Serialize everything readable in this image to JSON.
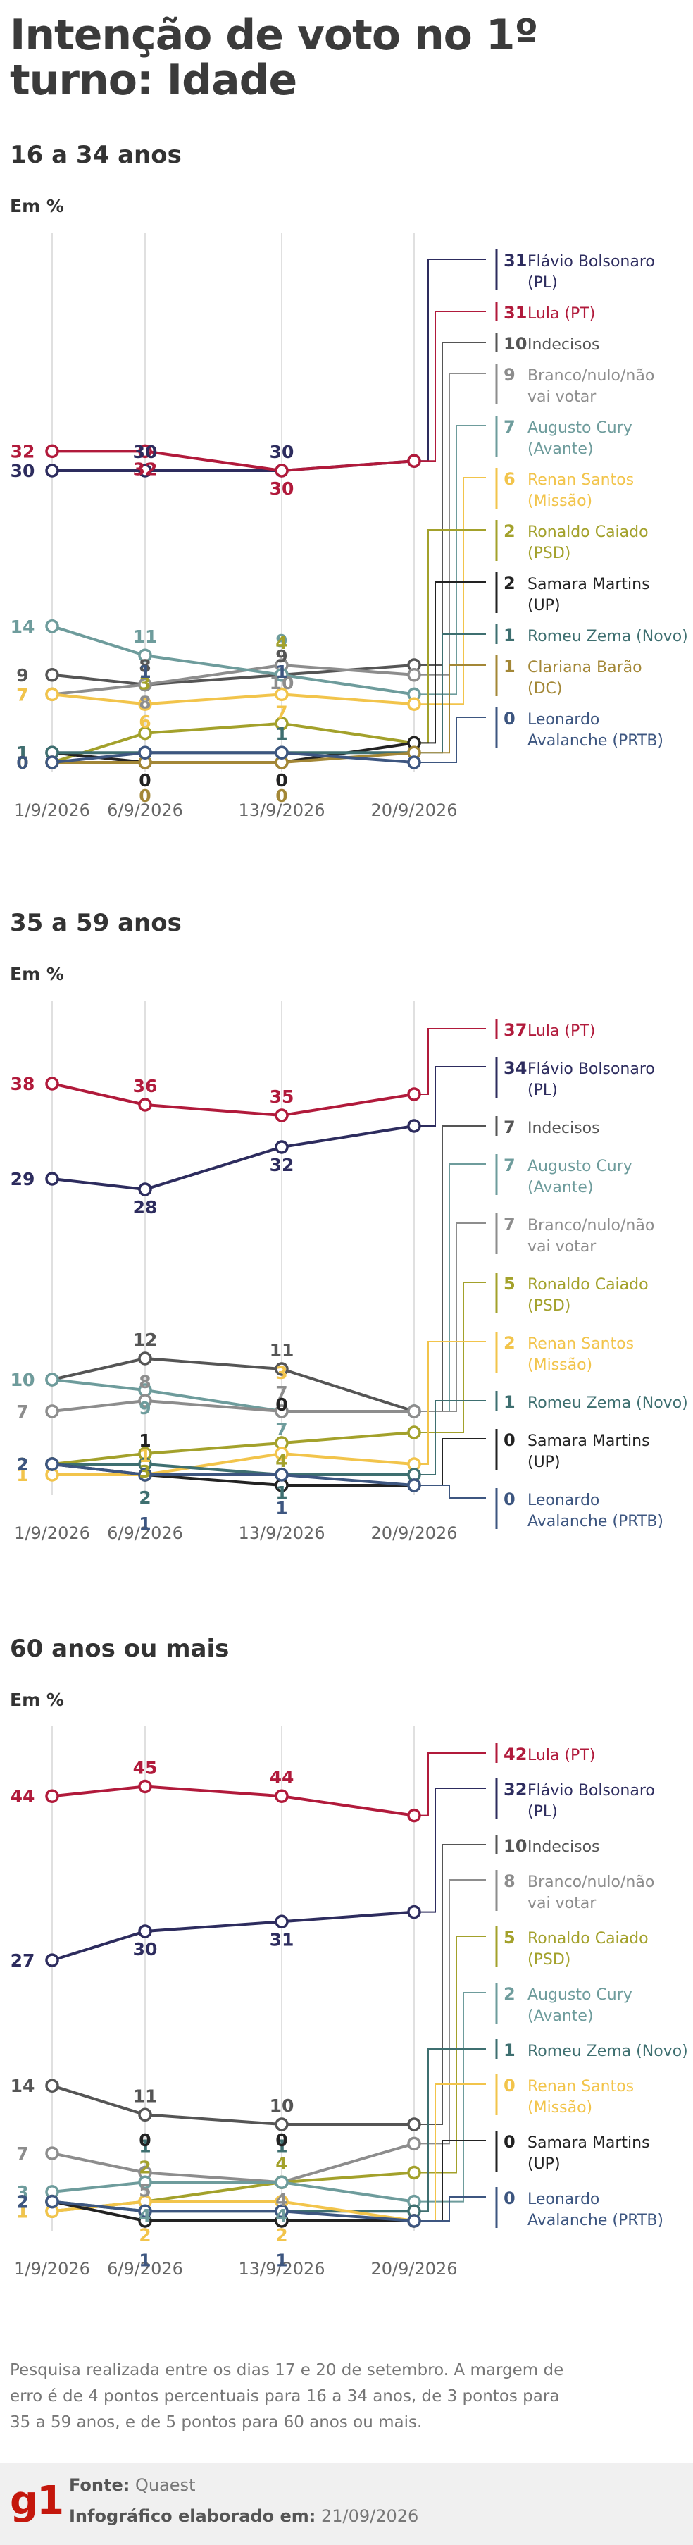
{
  "title": "Intenção de voto no 1º turno: Idade",
  "unit": "Em %",
  "colors": {
    "lula": "#b11a3b",
    "flavio": "#2d2c5e",
    "indecisos": "#555555",
    "branco": "#8d8d8d",
    "cury": "#6e9c9c",
    "renan": "#f2c44b",
    "caiado": "#a3a12b",
    "samara": "#222222",
    "zema": "#3e6f70",
    "clariana": "#a38736",
    "avalanche": "#3d5680"
  },
  "chart_data": [
    {
      "type": "line",
      "title": "16 a 34 anos",
      "x": [
        "1/9/2026",
        "6/9/2026",
        "13/9/2026",
        "20/9/2026"
      ],
      "series": [
        {
          "name": "Flávio Bolsonaro (PL)",
          "key": "flavio",
          "values": [
            30,
            30,
            30,
            31
          ]
        },
        {
          "name": "Lula (PT)",
          "key": "lula",
          "values": [
            32,
            32,
            30,
            31
          ]
        },
        {
          "name": "Indecisos",
          "key": "indecisos",
          "values": [
            9,
            8,
            9,
            10
          ]
        },
        {
          "name": "Branco/nulo/não vai votar",
          "key": "branco",
          "values": [
            7,
            8,
            10,
            9
          ]
        },
        {
          "name": "Augusto Cury (Avante)",
          "key": "cury",
          "values": [
            14,
            11,
            9,
            7
          ]
        },
        {
          "name": "Renan Santos (Missão)",
          "key": "renan",
          "values": [
            7,
            6,
            7,
            6
          ]
        },
        {
          "name": "Ronaldo Caiado (PSD)",
          "key": "caiado",
          "values": [
            0,
            3,
            4,
            2
          ]
        },
        {
          "name": "Samara Martins (UP)",
          "key": "samara",
          "values": [
            1,
            0,
            0,
            2
          ]
        },
        {
          "name": "Romeu Zema (Novo)",
          "key": "zema",
          "values": [
            1,
            1,
            1,
            1
          ]
        },
        {
          "name": "Clariana Barão (DC)",
          "key": "clariana",
          "values": [
            0,
            0,
            0,
            1
          ]
        },
        {
          "name": "Leonardo Avalanche (PRTB)",
          "key": "avalanche",
          "values": [
            0,
            1,
            1,
            0
          ]
        }
      ],
      "legend": [
        {
          "value": "31",
          "name": "Flávio Bolsonaro (PL)",
          "key": "flavio"
        },
        {
          "value": "31",
          "name": "Lula (PT)",
          "key": "lula"
        },
        {
          "value": "10",
          "name": "Indecisos",
          "key": "indecisos"
        },
        {
          "value": "9",
          "name": "Branco/nulo/não vai votar",
          "key": "branco"
        },
        {
          "value": "7",
          "name": "Augusto Cury (Avante)",
          "key": "cury"
        },
        {
          "value": "6",
          "name": "Renan Santos (Missão)",
          "key": "renan"
        },
        {
          "value": "2",
          "name": "Ronaldo Caiado (PSD)",
          "key": "caiado"
        },
        {
          "value": "2",
          "name": "Samara Martins (UP)",
          "key": "samara"
        },
        {
          "value": "1",
          "name": "Romeu Zema (Novo)",
          "key": "zema"
        },
        {
          "value": "1",
          "name": "Clariana Barão (DC)",
          "key": "clariana"
        },
        {
          "value": "0",
          "name": "Leonardo Avalanche (PRTB)",
          "key": "avalanche"
        }
      ]
    },
    {
      "type": "line",
      "title": "35 a 59 anos",
      "x": [
        "1/9/2026",
        "6/9/2026",
        "13/9/2026",
        "20/9/2026"
      ],
      "series": [
        {
          "name": "Lula (PT)",
          "key": "lula",
          "values": [
            38,
            36,
            35,
            37
          ]
        },
        {
          "name": "Flávio Bolsonaro (PL)",
          "key": "flavio",
          "values": [
            29,
            28,
            32,
            34
          ]
        },
        {
          "name": "Indecisos",
          "key": "indecisos",
          "values": [
            10,
            12,
            11,
            7
          ]
        },
        {
          "name": "Augusto Cury (Avante)",
          "key": "cury",
          "values": [
            10,
            9,
            7,
            7
          ]
        },
        {
          "name": "Branco/nulo/não vai votar",
          "key": "branco",
          "values": [
            7,
            8,
            7,
            7
          ]
        },
        {
          "name": "Ronaldo Caiado (PSD)",
          "key": "caiado",
          "values": [
            2,
            3,
            4,
            5
          ]
        },
        {
          "name": "Renan Santos (Missão)",
          "key": "renan",
          "values": [
            1,
            1,
            3,
            2
          ]
        },
        {
          "name": "Romeu Zema (Novo)",
          "key": "zema",
          "values": [
            2,
            2,
            1,
            1
          ]
        },
        {
          "name": "Samara Martins (UP)",
          "key": "samara",
          "values": [
            2,
            1,
            0,
            0
          ]
        },
        {
          "name": "Leonardo Avalanche (PRTB)",
          "key": "avalanche",
          "values": [
            2,
            1,
            1,
            0
          ]
        }
      ],
      "legend": [
        {
          "value": "37",
          "name": "Lula (PT)",
          "key": "lula"
        },
        {
          "value": "34",
          "name": "Flávio Bolsonaro (PL)",
          "key": "flavio"
        },
        {
          "value": "7",
          "name": "Indecisos",
          "key": "indecisos"
        },
        {
          "value": "7",
          "name": "Augusto Cury (Avante)",
          "key": "cury"
        },
        {
          "value": "7",
          "name": "Branco/nulo/não vai votar",
          "key": "branco"
        },
        {
          "value": "5",
          "name": "Ronaldo Caiado (PSD)",
          "key": "caiado"
        },
        {
          "value": "2",
          "name": "Renan Santos (Missão)",
          "key": "renan"
        },
        {
          "value": "1",
          "name": "Romeu Zema (Novo)",
          "key": "zema"
        },
        {
          "value": "0",
          "name": "Samara Martins (UP)",
          "key": "samara"
        },
        {
          "value": "0",
          "name": "Leonardo Avalanche (PRTB)",
          "key": "avalanche"
        }
      ]
    },
    {
      "type": "line",
      "title": "60 anos ou mais",
      "x": [
        "1/9/2026",
        "6/9/2026",
        "13/9/2026",
        "20/9/2026"
      ],
      "series": [
        {
          "name": "Lula (PT)",
          "key": "lula",
          "values": [
            44,
            45,
            44,
            42
          ]
        },
        {
          "name": "Flávio Bolsonaro (PL)",
          "key": "flavio",
          "values": [
            27,
            30,
            31,
            32
          ]
        },
        {
          "name": "Indecisos",
          "key": "indecisos",
          "values": [
            14,
            11,
            10,
            10
          ]
        },
        {
          "name": "Branco/nulo/não vai votar",
          "key": "branco",
          "values": [
            7,
            5,
            4,
            8
          ]
        },
        {
          "name": "Ronaldo Caiado (PSD)",
          "key": "caiado",
          "values": [
            1,
            2,
            4,
            5
          ]
        },
        {
          "name": "Augusto Cury (Avante)",
          "key": "cury",
          "values": [
            3,
            4,
            4,
            2
          ]
        },
        {
          "name": "Romeu Zema (Novo)",
          "key": "zema",
          "values": [
            2,
            1,
            1,
            1
          ]
        },
        {
          "name": "Renan Santos (Missão)",
          "key": "renan",
          "values": [
            1,
            2,
            2,
            0
          ]
        },
        {
          "name": "Samara Martins (UP)",
          "key": "samara",
          "values": [
            2,
            0,
            0,
            0
          ]
        },
        {
          "name": "Leonardo Avalanche (PRTB)",
          "key": "avalanche",
          "values": [
            2,
            1,
            1,
            0
          ]
        }
      ],
      "legend": [
        {
          "value": "42",
          "name": "Lula (PT)",
          "key": "lula"
        },
        {
          "value": "32",
          "name": "Flávio Bolsonaro (PL)",
          "key": "flavio"
        },
        {
          "value": "10",
          "name": "Indecisos",
          "key": "indecisos"
        },
        {
          "value": "8",
          "name": "Branco/nulo/não vai votar",
          "key": "branco"
        },
        {
          "value": "5",
          "name": "Ronaldo Caiado (PSD)",
          "key": "caiado"
        },
        {
          "value": "2",
          "name": "Augusto Cury (Avante)",
          "key": "cury"
        },
        {
          "value": "1",
          "name": "Romeu Zema (Novo)",
          "key": "zema"
        },
        {
          "value": "0",
          "name": "Renan Santos (Missão)",
          "key": "renan"
        },
        {
          "value": "0",
          "name": "Samara Martins (UP)",
          "key": "samara"
        },
        {
          "value": "0",
          "name": "Leonardo Avalanche (PRTB)",
          "key": "avalanche"
        }
      ]
    }
  ],
  "source_note": "Pesquisa realizada entre os dias 17 e 20 de setembro. A margem de erro é de 4 pontos percentuais para 16 a 34 anos, de 3 pontos para 35 a 59 anos, e de 5 pontos para 60 anos ou mais.",
  "footer": {
    "logo": "g1",
    "source_label": "Fonte:",
    "source_value": "Quaest",
    "made_label": "Infográfico elaborado em:",
    "made_value": "21/09/2026"
  }
}
